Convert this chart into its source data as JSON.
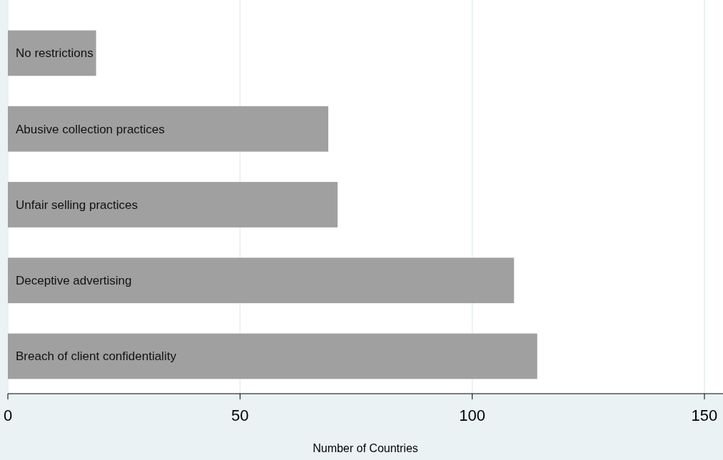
{
  "chart_data": {
    "type": "bar",
    "orientation": "horizontal",
    "categories": [
      "No restrictions",
      "Abusive collection practices",
      "Unfair selling practices",
      "Deceptive advertising",
      "Breach of client confidentiality"
    ],
    "values": [
      19,
      69,
      71,
      109,
      114
    ],
    "color": "#a0a0a0",
    "xlim": [
      0,
      154
    ],
    "xticks": [
      0,
      50,
      100,
      150
    ],
    "xlabel": "Number of Countries",
    "grid": "x"
  }
}
